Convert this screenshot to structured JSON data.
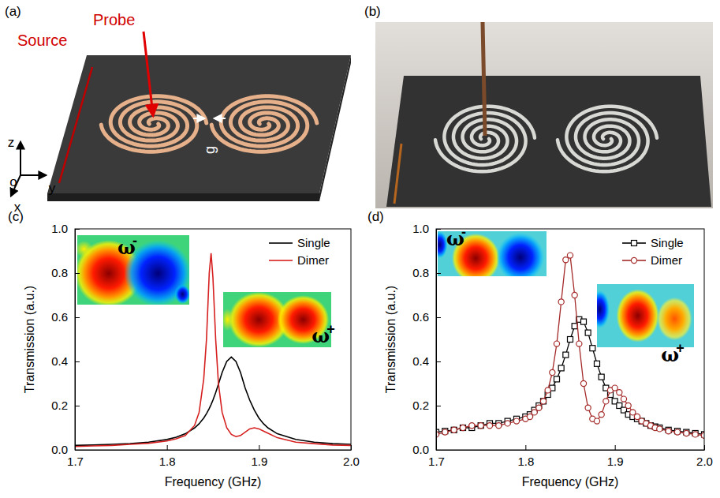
{
  "panel_a": {
    "label": "(a)",
    "source": "Source",
    "probe": "Probe",
    "gap": "g",
    "axes": [
      "z",
      "o",
      "y",
      "x"
    ]
  },
  "panel_b": {
    "label": "(b)"
  },
  "chart_data": [
    {
      "type": "line",
      "label": "(c)",
      "x_label": "Frequency (GHz)",
      "y_label": "Transmission (a.u.)",
      "xlim": [
        1.7,
        2.0
      ],
      "ylim": [
        0,
        1.0
      ],
      "xticks": [
        1.7,
        1.8,
        1.9,
        {
          "value": 2.0,
          "label": "2.0"
        }
      ],
      "yticks": [
        {
          "value": 0,
          "label": "0.0"
        },
        0.2,
        0.4,
        0.6,
        0.8,
        {
          "value": 1.0,
          "label": "1.0"
        }
      ],
      "legend": "upper right",
      "insets": [
        {
          "symbol": "ω",
          "sign": "-"
        },
        {
          "symbol": "ω",
          "sign": "+"
        }
      ],
      "x": [
        1.7,
        1.72,
        1.74,
        1.76,
        1.78,
        1.8,
        1.81,
        1.82,
        1.83,
        1.835,
        1.84,
        1.843,
        1.846,
        1.848,
        1.85,
        1.853,
        1.856,
        1.86,
        1.865,
        1.87,
        1.875,
        1.88,
        1.885,
        1.89,
        1.895,
        1.9,
        1.905,
        1.91,
        1.92,
        1.94,
        1.96,
        1.98,
        2.0
      ],
      "series": [
        {
          "name": "Single",
          "color": "#000000",
          "line_style": "solid",
          "values": [
            0.02,
            0.022,
            0.025,
            0.028,
            0.035,
            0.047,
            0.057,
            0.073,
            0.099,
            0.118,
            0.144,
            0.164,
            0.187,
            0.205,
            0.225,
            0.259,
            0.297,
            0.35,
            0.4,
            0.42,
            0.4,
            0.35,
            0.28,
            0.225,
            0.18,
            0.144,
            0.118,
            0.099,
            0.073,
            0.047,
            0.035,
            0.028,
            0.025
          ]
        },
        {
          "name": "Dimer",
          "color": "#d62020",
          "line_style": "solid",
          "values": [
            0.015,
            0.018,
            0.02,
            0.025,
            0.03,
            0.04,
            0.05,
            0.065,
            0.11,
            0.17,
            0.32,
            0.5,
            0.8,
            0.89,
            0.78,
            0.5,
            0.3,
            0.17,
            0.1,
            0.07,
            0.06,
            0.065,
            0.08,
            0.095,
            0.1,
            0.095,
            0.085,
            0.075,
            0.055,
            0.035,
            0.028,
            0.022,
            0.02
          ]
        }
      ]
    },
    {
      "type": "line",
      "label": "(d)",
      "x_label": "Frequency (GHz)",
      "y_label": "Transmission (a.u.)",
      "xlim": [
        1.7,
        2.0
      ],
      "ylim": [
        0,
        1.0
      ],
      "xticks": [
        1.7,
        1.8,
        1.9,
        {
          "value": 2.0,
          "label": "2.0"
        }
      ],
      "yticks": [
        {
          "value": 0,
          "label": "0.0"
        },
        0.2,
        0.4,
        0.6,
        0.8,
        {
          "value": 1.0,
          "label": "1.0"
        }
      ],
      "legend": "upper right",
      "insets": [
        {
          "symbol": "ω",
          "sign": "-"
        },
        {
          "symbol": "ω",
          "sign": "+"
        }
      ],
      "x": [
        1.7,
        1.71,
        1.72,
        1.73,
        1.74,
        1.75,
        1.76,
        1.77,
        1.78,
        1.79,
        1.8,
        1.805,
        1.81,
        1.815,
        1.82,
        1.825,
        1.83,
        1.835,
        1.84,
        1.845,
        1.85,
        1.855,
        1.86,
        1.865,
        1.87,
        1.875,
        1.88,
        1.885,
        1.89,
        1.895,
        1.9,
        1.905,
        1.91,
        1.915,
        1.92,
        1.925,
        1.93,
        1.935,
        1.94,
        1.945,
        1.95,
        1.96,
        1.97,
        1.98,
        1.99,
        2.0
      ],
      "series": [
        {
          "name": "Single",
          "color": "#000000",
          "line_style": "solid",
          "marker": "square",
          "values": [
            0.08,
            0.085,
            0.09,
            0.1,
            0.1,
            0.11,
            0.12,
            0.12,
            0.13,
            0.14,
            0.15,
            0.16,
            0.18,
            0.2,
            0.22,
            0.25,
            0.28,
            0.32,
            0.37,
            0.43,
            0.5,
            0.56,
            0.59,
            0.58,
            0.53,
            0.46,
            0.39,
            0.33,
            0.28,
            0.25,
            0.22,
            0.2,
            0.18,
            0.16,
            0.15,
            0.14,
            0.13,
            0.12,
            0.11,
            0.105,
            0.1,
            0.09,
            0.085,
            0.08,
            0.075,
            0.07
          ]
        },
        {
          "name": "Dimer",
          "color": "#a52a2a",
          "line_style": "solid",
          "marker": "circle",
          "values": [
            0.07,
            0.08,
            0.09,
            0.1,
            0.11,
            0.11,
            0.11,
            0.11,
            0.12,
            0.13,
            0.14,
            0.15,
            0.17,
            0.19,
            0.22,
            0.27,
            0.35,
            0.48,
            0.67,
            0.86,
            0.88,
            0.7,
            0.48,
            0.3,
            0.19,
            0.14,
            0.13,
            0.16,
            0.22,
            0.27,
            0.28,
            0.26,
            0.23,
            0.2,
            0.17,
            0.15,
            0.13,
            0.12,
            0.11,
            0.1,
            0.095,
            0.085,
            0.08,
            0.075,
            0.07,
            0.065
          ]
        }
      ]
    }
  ]
}
